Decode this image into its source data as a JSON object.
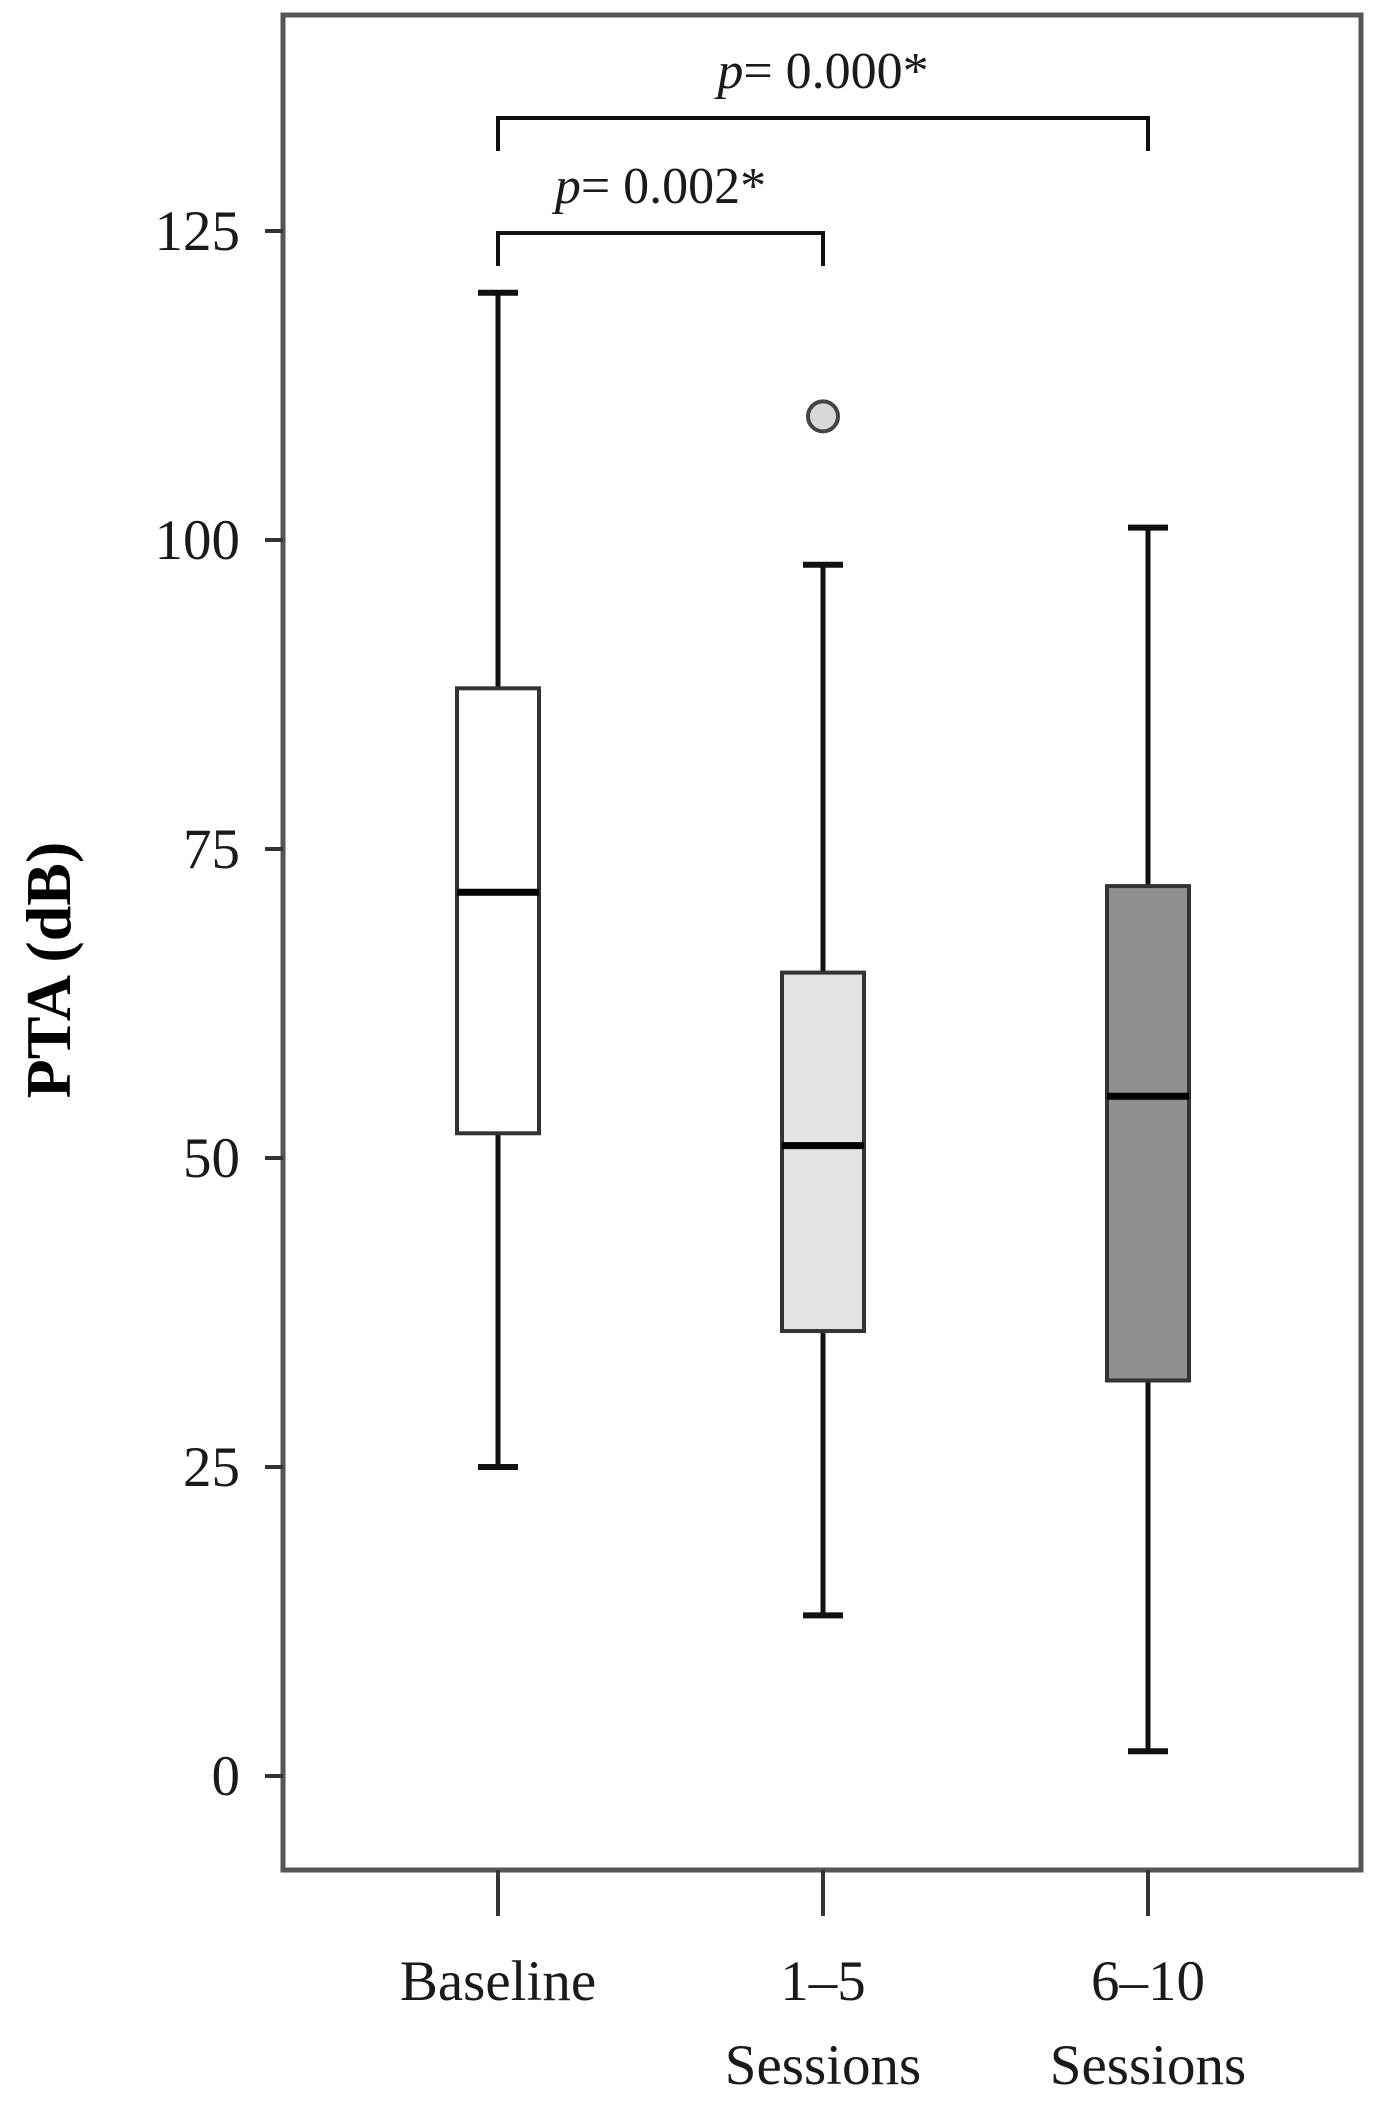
{
  "chart_data": {
    "type": "box",
    "ylabel": "PTA (dB)",
    "xlabel": "",
    "ylim": [
      -7,
      140
    ],
    "y_ticks": [
      0,
      25,
      50,
      75,
      100,
      125
    ],
    "grid": false,
    "groups": [
      {
        "label_lines": [
          "Baseline"
        ],
        "fill": "#ffffff",
        "whisker_low": 25,
        "q1": 52,
        "median": 71.5,
        "q3": 88,
        "whisker_high": 120,
        "outliers": []
      },
      {
        "label_lines": [
          "1–5",
          "Sessions"
        ],
        "fill": "#e3e3e3",
        "whisker_low": 13,
        "q1": 36,
        "median": 51,
        "q3": 65,
        "whisker_high": 98,
        "outliers": [
          110
        ]
      },
      {
        "label_lines": [
          "6–10",
          "Sessions"
        ],
        "fill": "#8f8f8f",
        "whisker_low": 2,
        "q1": 32,
        "median": 55,
        "q3": 72,
        "whisker_high": 101,
        "outliers": []
      }
    ],
    "comparisons": [
      {
        "from": 0,
        "to": 2,
        "p_prefix": "p",
        "p_text": "= 0.000*"
      },
      {
        "from": 0,
        "to": 1,
        "p_prefix": "p",
        "p_text": "= 0.002*"
      }
    ]
  }
}
